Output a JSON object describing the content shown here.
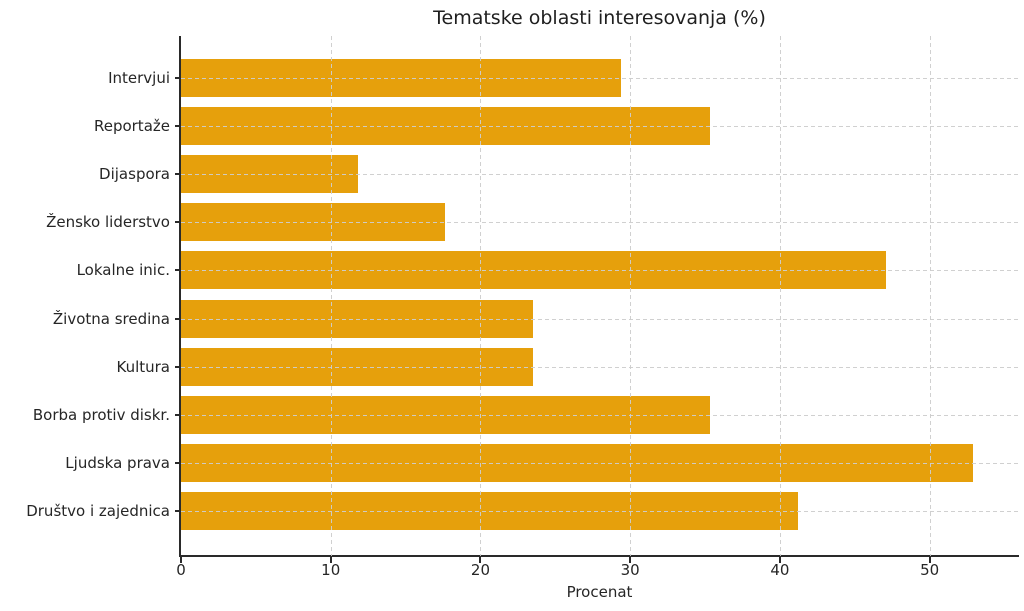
{
  "chart_data": {
    "type": "bar",
    "orientation": "horizontal",
    "title": "Tematske oblasti interesovanja (%)",
    "xlabel": "Procenat",
    "ylabel": "",
    "categories": [
      "Intervjui",
      "Reportaže",
      "Dijaspora",
      "Žensko liderstvo",
      "Lokalne inic.",
      "Životna sredina",
      "Kultura",
      "Borba protiv diskr.",
      "Ljudska prava",
      "Društvo i zajednica"
    ],
    "values": [
      29.4,
      35.3,
      11.8,
      17.6,
      47.1,
      23.5,
      23.5,
      35.3,
      52.9,
      41.2
    ],
    "xlim": [
      0,
      55.9
    ],
    "xticks": [
      0,
      10,
      20,
      30,
      40,
      50
    ],
    "grid": "dashed, both axes, drawn over bars",
    "legend": "none",
    "colors": {
      "bar": "#E6A00C",
      "grid": "#CDCDCD",
      "spine": "#2A2A2A",
      "text": "#262626",
      "background": "#FFFFFF"
    }
  }
}
